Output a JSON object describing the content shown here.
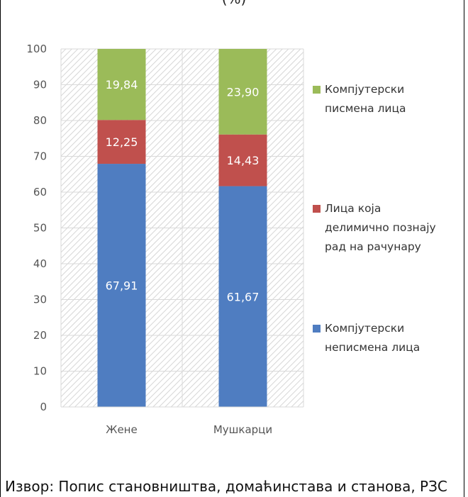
{
  "page": {
    "top_title_fragment": "(%)",
    "source_note": "Извор: Попис становништва, домаћинстава и станова, РЗС"
  },
  "chart_data": {
    "type": "bar",
    "stacked": true,
    "categories": [
      "Жене",
      "Мушкарци"
    ],
    "series": [
      {
        "name": "Компјутерски неписмена лица",
        "values": [
          67.91,
          61.67
        ],
        "labels": [
          "67,91",
          "61,67"
        ],
        "color": "#4f7dc1"
      },
      {
        "name": "Лица која делимично познају рад на рачунару",
        "values": [
          12.25,
          14.43
        ],
        "labels": [
          "12,25",
          "14,43"
        ],
        "color": "#c0504d"
      },
      {
        "name": "Компјутерски писмена лица",
        "values": [
          19.84,
          23.9
        ],
        "labels": [
          "19,84",
          "23,90"
        ],
        "color": "#9bbb59"
      }
    ],
    "yticks": [
      "0",
      "10",
      "20",
      "30",
      "40",
      "50",
      "60",
      "70",
      "80",
      "90",
      "100"
    ],
    "ylim": [
      0,
      100
    ],
    "legend_position": "right",
    "legend": [
      {
        "lines": [
          "Компјутерски",
          "писмена лица"
        ],
        "color": "#9bbb59"
      },
      {
        "lines": [
          "Лица која",
          "делимично познају",
          "рад на рачунару"
        ],
        "color": "#c0504d"
      },
      {
        "lines": [
          "Компјутерски",
          "неписмена лица"
        ],
        "color": "#4f7dc1"
      }
    ],
    "plot_background": "hatched-gray"
  }
}
